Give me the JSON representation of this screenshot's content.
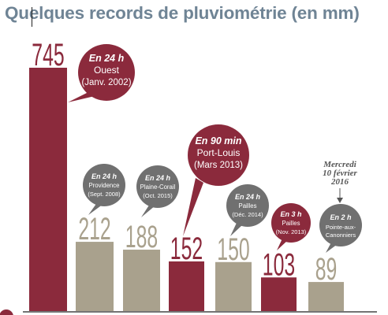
{
  "title": "Quelques records de pluviométrie (en mm)",
  "colors": {
    "red": "#8b2a3c",
    "beige": "#a9a18d",
    "gray": "#707070",
    "title": "#6f8495",
    "axis": "#222222"
  },
  "chart_data": {
    "type": "bar",
    "title": "Quelques records de pluviométrie (en mm)",
    "xlabel": "",
    "ylabel": "",
    "values": [
      745,
      212,
      188,
      152,
      150,
      103,
      89
    ],
    "bar_colors": [
      "red",
      "beige",
      "beige",
      "red",
      "beige",
      "red",
      "beige"
    ],
    "grid": false,
    "legend": "none",
    "annotations": [
      {
        "duration": "En 24 h",
        "place": "Ouest",
        "date": "(Janv. 2002)",
        "color": "red"
      },
      {
        "duration": "En 24 h",
        "place": "Providence",
        "date": "(Sept. 2008)",
        "color": "gray"
      },
      {
        "duration": "En 24 h",
        "place": "Plaine-Corail",
        "date": "(Oct. 2015)",
        "color": "gray"
      },
      {
        "duration": "En 90 min",
        "place": "Port-Louis",
        "date": "(Mars 2013)",
        "color": "red"
      },
      {
        "duration": "En 24 h",
        "place": "Pailles",
        "date": "(Déc. 2014)",
        "color": "gray"
      },
      {
        "duration": "En 3 h",
        "place": "Pailles",
        "date": "(Nov. 2013)",
        "color": "red"
      },
      {
        "duration": "En 2 h",
        "place": "Pointe-aux-Canonniers",
        "date": "",
        "color": "gray"
      }
    ],
    "callout": [
      "Mercredi",
      "10 février",
      "2016"
    ]
  }
}
